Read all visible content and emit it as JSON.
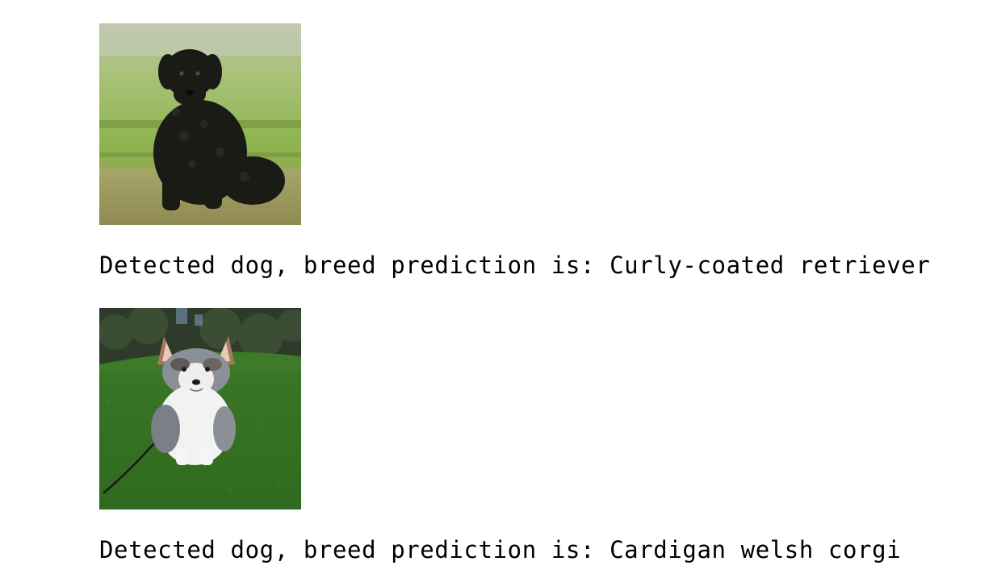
{
  "results": [
    {
      "image_subject": "Curly-coated retriever sitting on grass",
      "prefix": "Detected dog, breed prediction is: ",
      "breed": "Curly-coated retriever"
    },
    {
      "image_subject": "Cardigan welsh corgi sitting on grass",
      "prefix": "Detected dog, breed prediction is: ",
      "breed": "Cardigan welsh corgi"
    }
  ]
}
